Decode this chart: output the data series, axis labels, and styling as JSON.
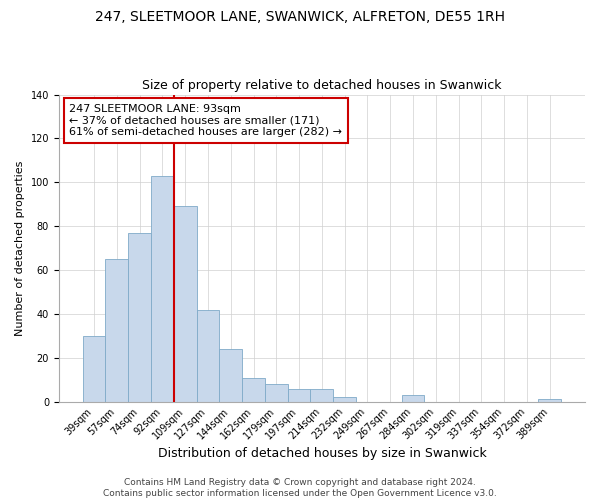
{
  "title1": "247, SLEETMOOR LANE, SWANWICK, ALFRETON, DE55 1RH",
  "title2": "Size of property relative to detached houses in Swanwick",
  "xlabel": "Distribution of detached houses by size in Swanwick",
  "ylabel": "Number of detached properties",
  "bar_labels": [
    "39sqm",
    "57sqm",
    "74sqm",
    "92sqm",
    "109sqm",
    "127sqm",
    "144sqm",
    "162sqm",
    "179sqm",
    "197sqm",
    "214sqm",
    "232sqm",
    "249sqm",
    "267sqm",
    "284sqm",
    "302sqm",
    "319sqm",
    "337sqm",
    "354sqm",
    "372sqm",
    "389sqm"
  ],
  "bar_values": [
    30,
    65,
    77,
    103,
    89,
    42,
    24,
    11,
    8,
    6,
    6,
    2,
    0,
    0,
    3,
    0,
    0,
    0,
    0,
    0,
    1
  ],
  "bar_color": "#c8d8eb",
  "bar_edge_color": "#7faac8",
  "vline_color": "#cc0000",
  "annotation_title": "247 SLEETMOOR LANE: 93sqm",
  "annotation_line1": "← 37% of detached houses are smaller (171)",
  "annotation_line2": "61% of semi-detached houses are larger (282) →",
  "annotation_box_color": "#ffffff",
  "annotation_box_edge": "#cc0000",
  "ylim": [
    0,
    140
  ],
  "yticks": [
    0,
    20,
    40,
    60,
    80,
    100,
    120,
    140
  ],
  "footer1": "Contains HM Land Registry data © Crown copyright and database right 2024.",
  "footer2": "Contains public sector information licensed under the Open Government Licence v3.0.",
  "title1_fontsize": 10,
  "title2_fontsize": 9,
  "xlabel_fontsize": 9,
  "ylabel_fontsize": 8,
  "tick_fontsize": 7,
  "annotation_fontsize": 8,
  "footer_fontsize": 6.5,
  "vline_idx": 3
}
